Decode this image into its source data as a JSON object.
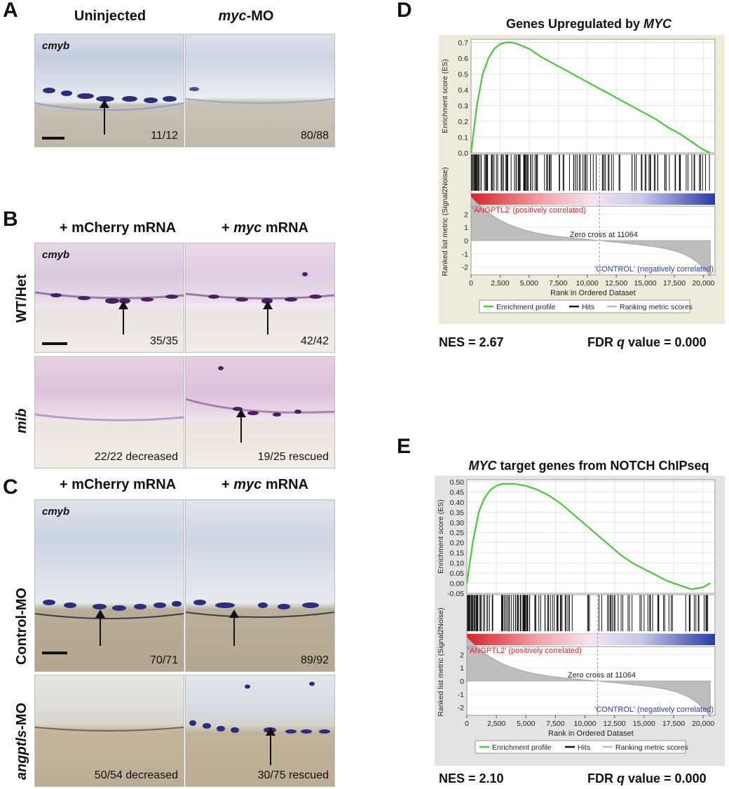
{
  "panels": {
    "A": {
      "letter": "A",
      "col_headers": [
        {
          "text": "Uninjected",
          "italic": ""
        },
        {
          "text": "-MO",
          "italic": "myc"
        }
      ],
      "gene": "cmyb",
      "counts": [
        "11/12",
        "80/88"
      ]
    },
    "B": {
      "letter": "B",
      "col_headers": [
        {
          "prefix": "+ ",
          "italic": "",
          "text": "mCherry mRNA"
        },
        {
          "prefix": "+ ",
          "italic": "myc",
          "text": " mRNA"
        }
      ],
      "row_labels": [
        "WT/Het",
        "mib"
      ],
      "gene": "cmyb",
      "counts": [
        "35/35",
        "42/42",
        "22/22 decreased",
        "19/25 rescued"
      ]
    },
    "C": {
      "letter": "C",
      "col_headers": [
        {
          "prefix": "+ ",
          "italic": "",
          "text": "mCherry mRNA"
        },
        {
          "prefix": "+ ",
          "italic": "myc",
          "text": " mRNA"
        }
      ],
      "row_labels": [
        {
          "italic": "",
          "text": "Control-MO"
        },
        {
          "italic": "angptls",
          "text": "-MO"
        }
      ],
      "gene": "cmyb",
      "counts": [
        "70/71",
        "89/92",
        "50/54 decreased",
        "30/75 rescued"
      ]
    },
    "D": {
      "letter": "D",
      "title_prefix": "Genes Upregulated by ",
      "title_italic": "MYC",
      "nes": "NES = 2.67",
      "fdr_prefix": "FDR ",
      "fdr_italic": "q",
      "fdr_suffix": " value = 0.000",
      "es_ticks": [
        "0.7",
        "0.6",
        "0.5",
        "0.4",
        "0.3",
        "0.2",
        "0.1",
        "0.0"
      ],
      "es_label": "Enrichment score (ES)",
      "metric_label": "Ranked list metric (Signal2Noise)",
      "metric_ticks": [
        "2",
        "1",
        "0",
        "-1",
        "-2"
      ],
      "x_ticks": [
        "0",
        "2,500",
        "5,000",
        "7,500",
        "10,000",
        "12,500",
        "15,000",
        "17,500",
        "20,000"
      ],
      "x_label": "Rank in Ordered Dataset",
      "pos_label": "'ANGPTL2' (positively correlated)",
      "neg_label": "'CONTROL' (negatively correlated)",
      "zero_cross": "Zero cross at 11064",
      "legend": [
        "Enrichment profile",
        "Hits",
        "Ranking metric scores"
      ]
    },
    "E": {
      "letter": "E",
      "title_italic": "MYC",
      "title_suffix": " target genes from NOTCH ChIPseq",
      "nes": "NES = 2.10",
      "fdr_prefix": "FDR ",
      "fdr_italic": "q",
      "fdr_suffix": " value = 0.000",
      "es_ticks": [
        "0.50",
        "0.45",
        "0.40",
        "0.35",
        "0.30",
        "0.25",
        "0.20",
        "0.15",
        "0.10",
        "0.05",
        "0.00",
        "-0.05"
      ],
      "es_label": "Enrichment score (ES)",
      "metric_label": "Ranked list metric (Signal2Noise)",
      "metric_ticks": [
        "2",
        "1",
        "0",
        "-1",
        "-2"
      ],
      "x_ticks": [
        "0",
        "2,500",
        "5,000",
        "7,500",
        "10,000",
        "12,500",
        "15,000",
        "17,500",
        "20,000"
      ],
      "x_label": "Rank in Ordered Dataset",
      "pos_label": "'ANGPTL2' (positively correlated)",
      "neg_label": "'CONTROL' (negatively correlated)",
      "zero_cross": "Zero cross at 11064",
      "legend": [
        "Enrichment profile",
        "Hits",
        "Ranking metric scores"
      ]
    }
  },
  "colors": {
    "es_curve": "#4cc43c",
    "pos": "#d8232a",
    "neg": "#2a3aa8",
    "gsea_bg_D": "#ecebdc",
    "gsea_bg_E": "#e4e4e4"
  },
  "chart_data": [
    {
      "type": "line",
      "title": "Genes Upregulated by MYC",
      "xlabel": "Rank in Ordered Dataset",
      "ylabel": "Enrichment score (ES)",
      "xlim": [
        0,
        21000
      ],
      "ylim": [
        0.0,
        0.72
      ],
      "series": [
        {
          "name": "Enrichment profile",
          "x": [
            0,
            500,
            1000,
            1500,
            2000,
            2500,
            3000,
            3500,
            4000,
            5000,
            6000,
            7000,
            8000,
            9000,
            10000,
            11000,
            12000,
            13000,
            14000,
            15000,
            16000,
            17000,
            18000,
            19000,
            20000,
            20600
          ],
          "y": [
            0.0,
            0.3,
            0.5,
            0.6,
            0.66,
            0.69,
            0.7,
            0.7,
            0.69,
            0.66,
            0.61,
            0.57,
            0.53,
            0.49,
            0.45,
            0.41,
            0.37,
            0.33,
            0.29,
            0.25,
            0.21,
            0.16,
            0.12,
            0.07,
            0.02,
            0.0
          ]
        }
      ]
    },
    {
      "type": "line",
      "title": "MYC target genes from NOTCH ChIPseq",
      "xlabel": "Rank in Ordered Dataset",
      "ylabel": "Enrichment score (ES)",
      "xlim": [
        0,
        21000
      ],
      "ylim": [
        -0.05,
        0.51
      ],
      "series": [
        {
          "name": "Enrichment profile",
          "x": [
            0,
            500,
            1000,
            1500,
            2000,
            2500,
            3000,
            3500,
            4000,
            5000,
            6000,
            7000,
            8000,
            9000,
            10000,
            11000,
            12000,
            13000,
            14000,
            15000,
            16000,
            17000,
            18000,
            19000,
            20000,
            20600
          ],
          "y": [
            0.0,
            0.2,
            0.35,
            0.42,
            0.46,
            0.48,
            0.49,
            0.49,
            0.49,
            0.48,
            0.46,
            0.43,
            0.39,
            0.34,
            0.29,
            0.24,
            0.19,
            0.14,
            0.1,
            0.07,
            0.04,
            0.01,
            -0.01,
            -0.03,
            -0.02,
            0.0
          ]
        }
      ]
    }
  ]
}
